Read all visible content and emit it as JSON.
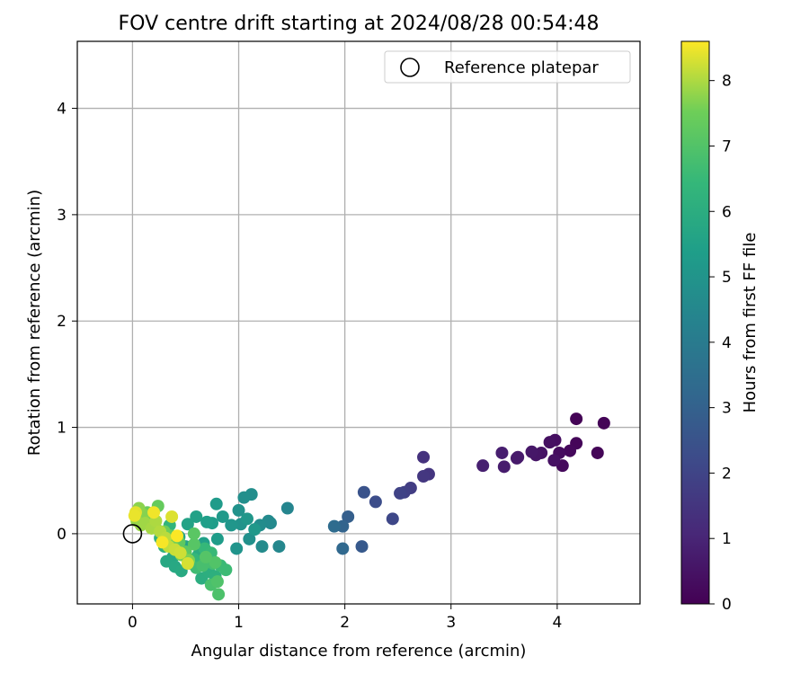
{
  "chart_data": {
    "type": "scatter",
    "title": "FOV centre drift starting at 2024/08/28 00:54:48",
    "xlabel": "Angular distance from reference (arcmin)",
    "ylabel": "Rotation from reference (arcmin)",
    "xlim": [
      -0.52,
      4.78
    ],
    "ylim": [
      -0.66,
      4.63
    ],
    "xticks": [
      0,
      1,
      2,
      3,
      4
    ],
    "yticks": [
      0,
      1,
      2,
      3,
      4
    ],
    "grid": true,
    "legend": {
      "placement": "top-right",
      "entries": [
        "Reference platepar"
      ]
    },
    "colorbar": {
      "label": "Hours from first FF file",
      "colormap": "viridis",
      "range": [
        0,
        8.6
      ],
      "ticks": [
        0,
        1,
        2,
        3,
        4,
        5,
        6,
        7,
        8
      ]
    },
    "reference_point": {
      "x": 0,
      "y": 0,
      "label": "Reference platepar"
    },
    "points": [
      {
        "x": 4.18,
        "y": 1.08,
        "h": 0.05
      },
      {
        "x": 4.44,
        "y": 1.04,
        "h": 0.08
      },
      {
        "x": 4.38,
        "y": 0.76,
        "h": 0.1
      },
      {
        "x": 4.18,
        "y": 0.85,
        "h": 0.15
      },
      {
        "x": 4.12,
        "y": 0.78,
        "h": 0.2
      },
      {
        "x": 4.05,
        "y": 0.64,
        "h": 0.25
      },
      {
        "x": 4.02,
        "y": 0.76,
        "h": 0.3
      },
      {
        "x": 3.98,
        "y": 0.88,
        "h": 0.35
      },
      {
        "x": 3.93,
        "y": 0.86,
        "h": 0.4
      },
      {
        "x": 3.97,
        "y": 0.69,
        "h": 0.45
      },
      {
        "x": 3.85,
        "y": 0.76,
        "h": 0.5
      },
      {
        "x": 3.8,
        "y": 0.74,
        "h": 0.55
      },
      {
        "x": 3.76,
        "y": 0.77,
        "h": 0.6
      },
      {
        "x": 3.62,
        "y": 0.71,
        "h": 0.65
      },
      {
        "x": 3.63,
        "y": 0.72,
        "h": 0.7
      },
      {
        "x": 3.5,
        "y": 0.63,
        "h": 0.75
      },
      {
        "x": 3.48,
        "y": 0.76,
        "h": 0.8
      },
      {
        "x": 3.3,
        "y": 0.64,
        "h": 0.85
      },
      {
        "x": 2.74,
        "y": 0.72,
        "h": 1.4
      },
      {
        "x": 2.79,
        "y": 0.56,
        "h": 1.5
      },
      {
        "x": 2.74,
        "y": 0.54,
        "h": 1.55
      },
      {
        "x": 2.62,
        "y": 0.43,
        "h": 1.75
      },
      {
        "x": 2.56,
        "y": 0.39,
        "h": 1.85
      },
      {
        "x": 2.52,
        "y": 0.38,
        "h": 1.95
      },
      {
        "x": 2.45,
        "y": 0.14,
        "h": 2.1
      },
      {
        "x": 2.29,
        "y": 0.3,
        "h": 2.3
      },
      {
        "x": 2.18,
        "y": 0.39,
        "h": 2.5
      },
      {
        "x": 2.16,
        "y": -0.12,
        "h": 2.7
      },
      {
        "x": 2.03,
        "y": 0.16,
        "h": 2.9
      },
      {
        "x": 1.98,
        "y": 0.07,
        "h": 3.1
      },
      {
        "x": 1.98,
        "y": -0.14,
        "h": 3.25
      },
      {
        "x": 1.9,
        "y": 0.07,
        "h": 3.4
      },
      {
        "x": 1.46,
        "y": 0.24,
        "h": 4.4
      },
      {
        "x": 1.38,
        "y": -0.12,
        "h": 4.5
      },
      {
        "x": 1.3,
        "y": 0.1,
        "h": 4.55
      },
      {
        "x": 1.28,
        "y": 0.12,
        "h": 4.6
      },
      {
        "x": 1.22,
        "y": -0.12,
        "h": 4.65
      },
      {
        "x": 1.2,
        "y": 0.08,
        "h": 4.7
      },
      {
        "x": 1.12,
        "y": 0.37,
        "h": 4.75
      },
      {
        "x": 1.05,
        "y": 0.34,
        "h": 4.8
      },
      {
        "x": 1.1,
        "y": -0.05,
        "h": 4.85
      },
      {
        "x": 1.0,
        "y": 0.22,
        "h": 4.9
      },
      {
        "x": 1.02,
        "y": 0.09,
        "h": 4.95
      },
      {
        "x": 0.98,
        "y": -0.14,
        "h": 5.0
      },
      {
        "x": 0.93,
        "y": 0.08,
        "h": 5.05
      },
      {
        "x": 1.08,
        "y": 0.14,
        "h": 5.1
      },
      {
        "x": 1.15,
        "y": 0.04,
        "h": 5.15
      },
      {
        "x": 0.85,
        "y": 0.16,
        "h": 5.2
      },
      {
        "x": 0.79,
        "y": 0.28,
        "h": 5.25
      },
      {
        "x": 0.8,
        "y": -0.05,
        "h": 5.3
      },
      {
        "x": 0.75,
        "y": 0.1,
        "h": 5.35
      },
      {
        "x": 0.7,
        "y": 0.11,
        "h": 5.4
      },
      {
        "x": 0.67,
        "y": -0.09,
        "h": 5.45
      },
      {
        "x": 0.6,
        "y": 0.16,
        "h": 5.5
      },
      {
        "x": 0.52,
        "y": 0.09,
        "h": 5.55
      },
      {
        "x": 0.5,
        "y": -0.12,
        "h": 5.6
      },
      {
        "x": 0.44,
        "y": -0.03,
        "h": 5.65
      },
      {
        "x": 0.38,
        "y": -0.22,
        "h": 5.7
      },
      {
        "x": 0.32,
        "y": -0.26,
        "h": 5.75
      },
      {
        "x": 0.4,
        "y": -0.31,
        "h": 5.8
      },
      {
        "x": 0.46,
        "y": -0.35,
        "h": 5.85
      },
      {
        "x": 0.55,
        "y": -0.28,
        "h": 5.9
      },
      {
        "x": 0.62,
        "y": -0.2,
        "h": 5.95
      },
      {
        "x": 0.65,
        "y": -0.42,
        "h": 6.0
      },
      {
        "x": 0.72,
        "y": -0.36,
        "h": 6.05
      },
      {
        "x": 0.78,
        "y": -0.4,
        "h": 6.1
      },
      {
        "x": 0.3,
        "y": -0.12,
        "h": 6.15
      },
      {
        "x": 0.26,
        "y": -0.04,
        "h": 6.2
      },
      {
        "x": 0.22,
        "y": 0.05,
        "h": 6.25
      },
      {
        "x": 0.35,
        "y": 0.08,
        "h": 6.3
      },
      {
        "x": 0.42,
        "y": -0.15,
        "h": 6.35
      },
      {
        "x": 0.58,
        "y": -0.24,
        "h": 6.4
      },
      {
        "x": 0.68,
        "y": -0.14,
        "h": 6.45
      },
      {
        "x": 0.74,
        "y": -0.18,
        "h": 6.5
      },
      {
        "x": 0.83,
        "y": -0.3,
        "h": 6.55
      },
      {
        "x": 0.88,
        "y": -0.34,
        "h": 6.6
      },
      {
        "x": 0.6,
        "y": -0.32,
        "h": 6.65
      },
      {
        "x": 0.7,
        "y": -0.25,
        "h": 6.7
      },
      {
        "x": 0.76,
        "y": -0.28,
        "h": 6.75
      },
      {
        "x": 0.66,
        "y": -0.3,
        "h": 6.8
      },
      {
        "x": 0.74,
        "y": -0.48,
        "h": 6.85
      },
      {
        "x": 0.81,
        "y": -0.57,
        "h": 6.9
      },
      {
        "x": 0.8,
        "y": -0.45,
        "h": 6.95
      },
      {
        "x": 0.78,
        "y": -0.27,
        "h": 7.0
      },
      {
        "x": 0.69,
        "y": -0.22,
        "h": 7.05
      },
      {
        "x": 0.58,
        "y": -0.1,
        "h": 7.1
      },
      {
        "x": 0.58,
        "y": 0.0,
        "h": 7.15
      },
      {
        "x": 0.5,
        "y": -0.17,
        "h": 7.2
      },
      {
        "x": 0.44,
        "y": -0.08,
        "h": 7.25
      },
      {
        "x": 0.36,
        "y": -0.02,
        "h": 7.3
      },
      {
        "x": 0.24,
        "y": 0.26,
        "h": 7.35
      },
      {
        "x": 0.17,
        "y": 0.14,
        "h": 7.4
      },
      {
        "x": 0.14,
        "y": 0.2,
        "h": 7.45
      },
      {
        "x": 0.3,
        "y": 0.02,
        "h": 7.5
      },
      {
        "x": 0.38,
        "y": -0.06,
        "h": 7.55
      },
      {
        "x": 0.46,
        "y": -0.2,
        "h": 7.6
      },
      {
        "x": 0.53,
        "y": -0.25,
        "h": 7.65
      },
      {
        "x": 0.1,
        "y": 0.18,
        "h": 7.7
      },
      {
        "x": 0.06,
        "y": 0.24,
        "h": 7.75
      },
      {
        "x": 0.04,
        "y": 0.12,
        "h": 7.8
      },
      {
        "x": 0.08,
        "y": 0.08,
        "h": 7.85
      },
      {
        "x": 0.12,
        "y": 0.1,
        "h": 7.9
      },
      {
        "x": 0.18,
        "y": 0.05,
        "h": 7.95
      },
      {
        "x": 0.22,
        "y": 0.12,
        "h": 8.0
      },
      {
        "x": 0.26,
        "y": 0.02,
        "h": 8.05
      },
      {
        "x": 0.31,
        "y": -0.04,
        "h": 8.1
      },
      {
        "x": 0.34,
        "y": -0.12,
        "h": 8.15
      },
      {
        "x": 0.4,
        "y": -0.15,
        "h": 8.2
      },
      {
        "x": 0.45,
        "y": -0.18,
        "h": 8.25
      },
      {
        "x": 0.52,
        "y": -0.28,
        "h": 8.3
      },
      {
        "x": 0.37,
        "y": 0.16,
        "h": 8.35
      },
      {
        "x": 0.03,
        "y": 0.2,
        "h": 8.4
      },
      {
        "x": 0.02,
        "y": 0.17,
        "h": 8.45
      },
      {
        "x": 0.2,
        "y": 0.2,
        "h": 8.5
      },
      {
        "x": 0.28,
        "y": -0.08,
        "h": 8.55
      },
      {
        "x": 0.42,
        "y": -0.02,
        "h": 8.58
      }
    ]
  }
}
